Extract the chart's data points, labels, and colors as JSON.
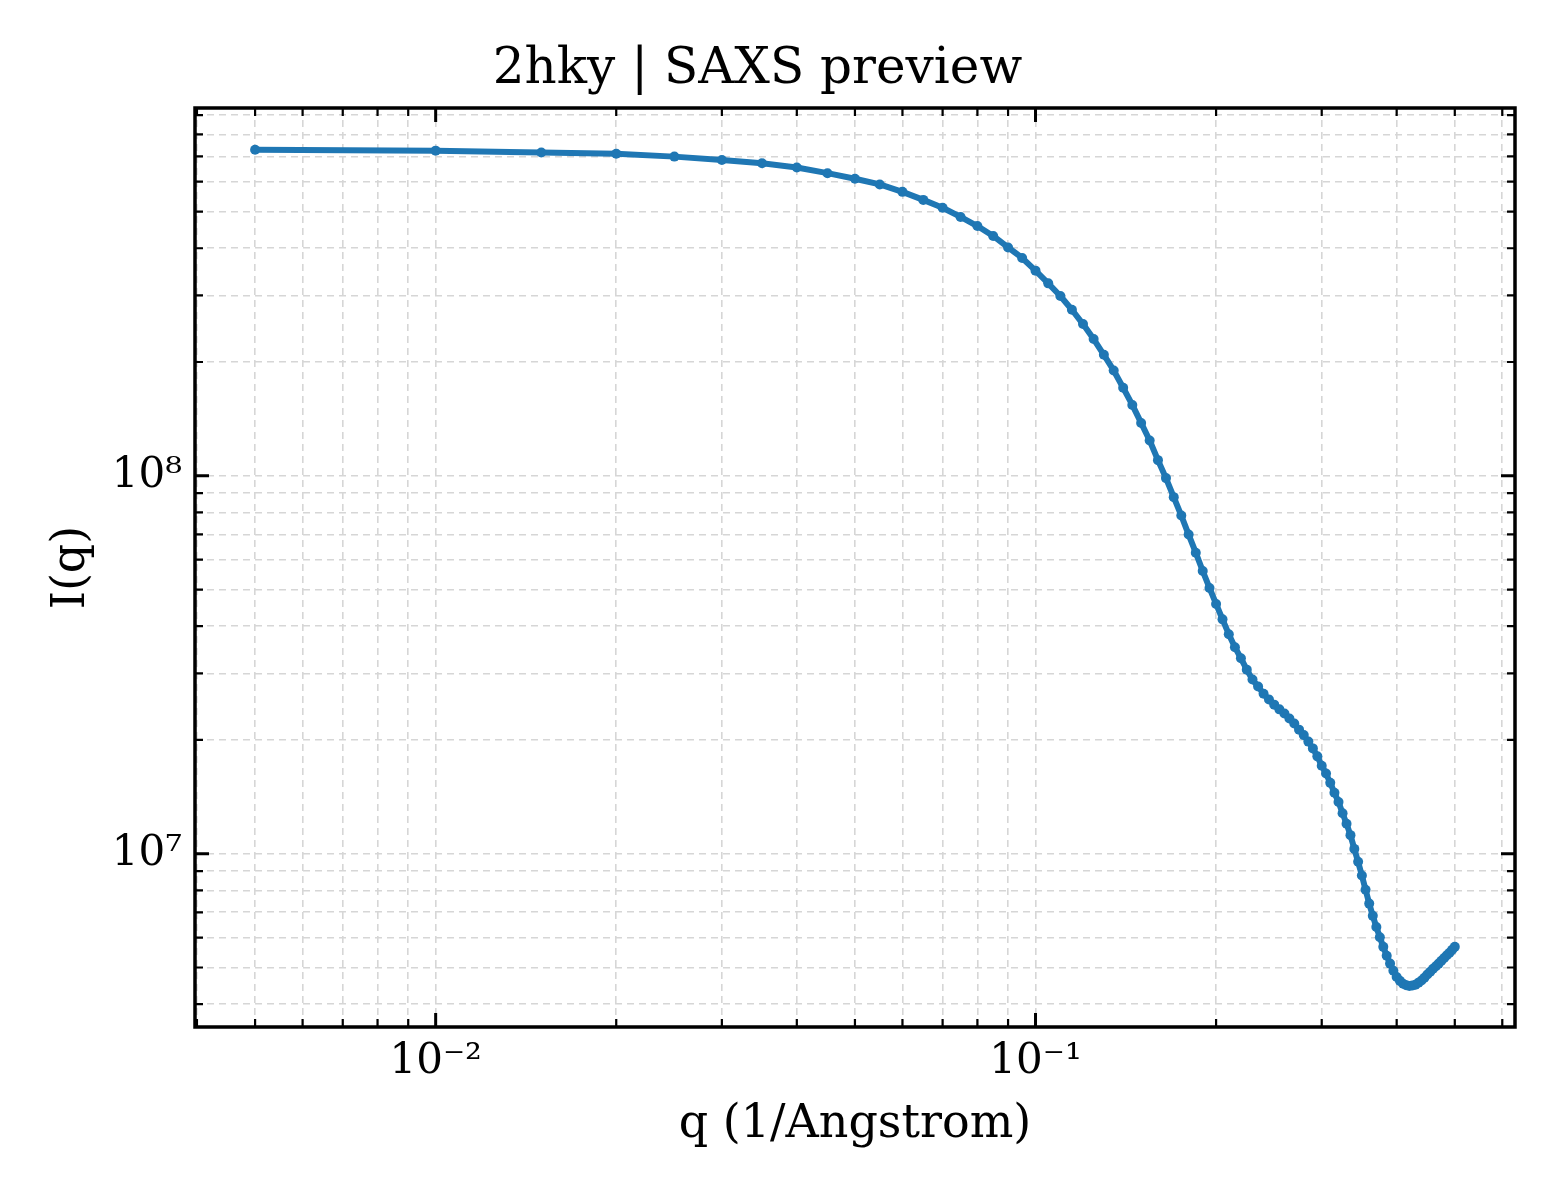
{
  "chart_data": {
    "type": "line",
    "title": "2hky | SAXS preview",
    "xlabel": "q (1/Angstrom)",
    "ylabel": "I(q)",
    "x": [
      0.005,
      0.01,
      0.015,
      0.02,
      0.025,
      0.03,
      0.035,
      0.04,
      0.045,
      0.05,
      0.055,
      0.06,
      0.065,
      0.07,
      0.075,
      0.08,
      0.085,
      0.09,
      0.095,
      0.1,
      0.105,
      0.11,
      0.115,
      0.12,
      0.125,
      0.13,
      0.135,
      0.14,
      0.145,
      0.15,
      0.155,
      0.16,
      0.165,
      0.17,
      0.175,
      0.18,
      0.185,
      0.19,
      0.195,
      0.2,
      0.205,
      0.21,
      0.215,
      0.22,
      0.225,
      0.23,
      0.235,
      0.24,
      0.245,
      0.25,
      0.255,
      0.26,
      0.265,
      0.27,
      0.275,
      0.28,
      0.285,
      0.29,
      0.295,
      0.3,
      0.305,
      0.31,
      0.315,
      0.32,
      0.325,
      0.33,
      0.335,
      0.34,
      0.345,
      0.35,
      0.355,
      0.36,
      0.365,
      0.37,
      0.375,
      0.38,
      0.385,
      0.39,
      0.395,
      0.4,
      0.405,
      0.41,
      0.415,
      0.42,
      0.425,
      0.43,
      0.435,
      0.44,
      0.445,
      0.45,
      0.455,
      0.46,
      0.465,
      0.47,
      0.475,
      0.48,
      0.485,
      0.49,
      0.495,
      0.5
    ],
    "series": [
      {
        "color": "#1f77b4",
        "values": [
          729000000.0,
          725000000.0,
          717000000.0,
          711000000.0,
          699000000.0,
          685000000.0,
          671000000.0,
          654000000.0,
          632000000.0,
          611000000.0,
          590000000.0,
          564000000.0,
          537000000.0,
          512000000.0,
          484000000.0,
          458000000.0,
          431000000.0,
          402000000.0,
          377000000.0,
          349000000.0,
          323000000.0,
          299000000.0,
          275000000.0,
          252000000.0,
          230000000.0,
          209000000.0,
          190000000.0,
          171000000.0,
          154000000.0,
          138000000.0,
          124000000.0,
          110000000.0,
          98600000.0,
          87800000.0,
          78500000.0,
          69900000.0,
          62600000.0,
          56000000.0,
          50500000.0,
          45800000.0,
          41700000.0,
          38100000.0,
          35200000.0,
          32900000.0,
          30700000.0,
          28900000.0,
          27700000.0,
          26500000.0,
          25600000.0,
          24800000.0,
          24100000.0,
          23500000.0,
          22800000.0,
          22100000.0,
          21300000.0,
          20600000.0,
          19800000.0,
          19000000.0,
          18100000.0,
          17100000.0,
          16300000.0,
          15400000.0,
          14500000.0,
          13700000.0,
          12800000.0,
          12000000.0,
          11200000.0,
          10300000.0,
          9520000.0,
          8760000.0,
          8030000.0,
          7380000.0,
          6850000.0,
          6400000.0,
          6010000.0,
          5670000.0,
          5370000.0,
          5120000.0,
          4900000.0,
          4720000.0,
          4610000.0,
          4530000.0,
          4490000.0,
          4470000.0,
          4480000.0,
          4500000.0,
          4560000.0,
          4620000.0,
          4700000.0,
          4790000.0,
          4870000.0,
          4960000.0,
          5040000.0,
          5120000.0,
          5210000.0,
          5300000.0,
          5390000.0,
          5470000.0,
          5570000.0,
          5670000.0
        ]
      }
    ],
    "log": "xy",
    "xlim": [
      0.00397,
      0.63
    ],
    "ylim": [
      3480000.0,
      940000000.0
    ],
    "xticks": [
      {
        "value": 0.004,
        "label": null
      },
      {
        "value": 0.005,
        "label": null
      },
      {
        "value": 0.006,
        "label": null
      },
      {
        "value": 0.007,
        "label": null
      },
      {
        "value": 0.008,
        "label": null
      },
      {
        "value": 0.009,
        "label": null
      },
      {
        "value": 0.01,
        "label": "10⁻²"
      },
      {
        "value": 0.02,
        "label": null
      },
      {
        "value": 0.03,
        "label": null
      },
      {
        "value": 0.04,
        "label": null
      },
      {
        "value": 0.05,
        "label": null
      },
      {
        "value": 0.06,
        "label": null
      },
      {
        "value": 0.07,
        "label": null
      },
      {
        "value": 0.08,
        "label": null
      },
      {
        "value": 0.09,
        "label": null
      },
      {
        "value": 0.1,
        "label": "10⁻¹"
      },
      {
        "value": 0.2,
        "label": null
      },
      {
        "value": 0.3,
        "label": null
      },
      {
        "value": 0.4,
        "label": null
      },
      {
        "value": 0.5,
        "label": null
      },
      {
        "value": 0.6,
        "label": null
      }
    ],
    "yticks": [
      {
        "value": 4000000.0,
        "label": null
      },
      {
        "value": 5000000.0,
        "label": null
      },
      {
        "value": 6000000.0,
        "label": null
      },
      {
        "value": 7000000.0,
        "label": null
      },
      {
        "value": 8000000.0,
        "label": null
      },
      {
        "value": 9000000.0,
        "label": null
      },
      {
        "value": 10000000.0,
        "label": "10⁷"
      },
      {
        "value": 20000000.0,
        "label": null
      },
      {
        "value": 30000000.0,
        "label": null
      },
      {
        "value": 40000000.0,
        "label": null
      },
      {
        "value": 50000000.0,
        "label": null
      },
      {
        "value": 60000000.0,
        "label": null
      },
      {
        "value": 70000000.0,
        "label": null
      },
      {
        "value": 80000000.0,
        "label": null
      },
      {
        "value": 90000000.0,
        "label": null
      },
      {
        "value": 100000000.0,
        "label": "10⁸"
      },
      {
        "value": 200000000.0,
        "label": null
      },
      {
        "value": 300000000.0,
        "label": null
      },
      {
        "value": 400000000.0,
        "label": null
      },
      {
        "value": 500000000.0,
        "label": null
      },
      {
        "value": 600000000.0,
        "label": null
      },
      {
        "value": 700000000.0,
        "label": null
      },
      {
        "value": 800000000.0,
        "label": null
      },
      {
        "value": 900000000.0,
        "label": null
      }
    ],
    "grid": true,
    "marker": "circle",
    "line_style": "solid"
  }
}
